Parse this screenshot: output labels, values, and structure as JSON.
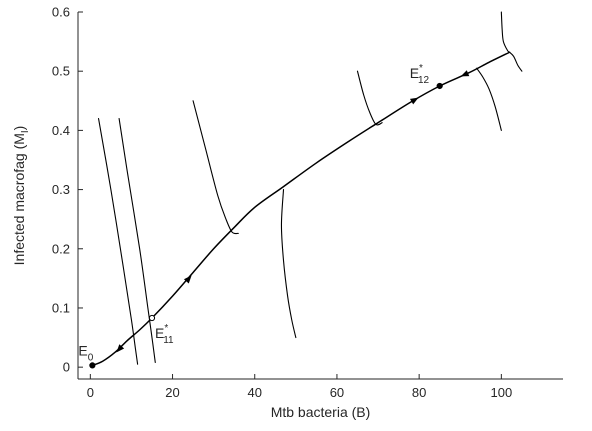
{
  "chart_data": {
    "type": "line",
    "title": "",
    "xlabel": "Mtb bacteria (B)",
    "ylabel_main": "Infected macrofag (M",
    "ylabel_sub": "I",
    "ylabel_close": ")",
    "xlim": [
      -3,
      115
    ],
    "ylim": [
      -0.02,
      0.6
    ],
    "xticks": [
      0,
      20,
      40,
      60,
      80,
      100
    ],
    "yticks": [
      0,
      0.1,
      0.2,
      0.3,
      0.4,
      0.5,
      0.6
    ],
    "xtick_labels": [
      "0",
      "20",
      "40",
      "60",
      "80",
      "100"
    ],
    "ytick_labels": [
      "0",
      "0.1",
      "0.2",
      "0.3",
      "0.4",
      "0.5",
      "0.6"
    ],
    "grid": false,
    "colors": {
      "line": "#000000",
      "axis": "#262626"
    },
    "series": [
      {
        "id": "heteroclinic",
        "x": [
          0.5,
          3,
          6,
          9,
          12,
          15,
          20,
          25,
          30,
          35,
          40,
          47,
          55,
          63,
          70,
          78,
          85,
          92,
          97,
          102
        ],
        "y": [
          0.003,
          0.01,
          0.025,
          0.045,
          0.063,
          0.083,
          0.12,
          0.16,
          0.2,
          0.236,
          0.27,
          0.305,
          0.345,
          0.382,
          0.413,
          0.448,
          0.475,
          0.497,
          0.515,
          0.532
        ]
      },
      {
        "id": "traj-a",
        "x": [
          2,
          5,
          8,
          10,
          11,
          11.5
        ],
        "y": [
          0.42,
          0.3,
          0.17,
          0.08,
          0.03,
          0.005
        ]
      },
      {
        "id": "traj-b",
        "x": [
          7,
          9,
          12,
          14,
          15,
          15.8
        ],
        "y": [
          0.42,
          0.33,
          0.2,
          0.1,
          0.05,
          0.008
        ]
      },
      {
        "id": "traj-c",
        "x": [
          25,
          28,
          31,
          33,
          34.5,
          36
        ],
        "y": [
          0.45,
          0.37,
          0.29,
          0.25,
          0.228,
          0.226
        ]
      },
      {
        "id": "traj-d",
        "x": [
          47,
          46.5,
          47,
          48,
          49,
          50
        ],
        "y": [
          0.3,
          0.24,
          0.18,
          0.12,
          0.08,
          0.05
        ]
      },
      {
        "id": "traj-e",
        "x": [
          65,
          66.5,
          68,
          69.5,
          71
        ],
        "y": [
          0.5,
          0.46,
          0.43,
          0.41,
          0.413
        ]
      },
      {
        "id": "traj-f",
        "x": [
          100,
          100.2,
          100.5,
          101.5,
          102
        ],
        "y": [
          0.6,
          0.57,
          0.55,
          0.535,
          0.532
        ]
      },
      {
        "id": "traj-g",
        "x": [
          102,
          103,
          104,
          105
        ],
        "y": [
          0.532,
          0.525,
          0.51,
          0.5
        ]
      },
      {
        "id": "traj-h",
        "x": [
          94,
          95.5,
          97,
          98.5,
          100
        ],
        "y": [
          0.505,
          0.49,
          0.47,
          0.44,
          0.4
        ]
      }
    ],
    "arrows": [
      {
        "id": "arrow-e0",
        "x": 7,
        "y": 0.03,
        "dx": -1,
        "dy": -0.008
      },
      {
        "id": "arrow-mid",
        "x": 24,
        "y": 0.15,
        "dx": 1,
        "dy": 0.008
      },
      {
        "id": "arrow-upper",
        "x": 79,
        "y": 0.452,
        "dx": 1,
        "dy": 0.004
      },
      {
        "id": "arrow-top",
        "x": 91,
        "y": 0.494,
        "dx": -1,
        "dy": -0.003
      }
    ],
    "points": [
      {
        "id": "E0",
        "label": "E",
        "sub": "0",
        "sup": "",
        "x": 0.5,
        "y": 0.003,
        "filled": true
      },
      {
        "id": "E11",
        "label": "E",
        "sub": "11",
        "sup": "*",
        "x": 15,
        "y": 0.083,
        "filled": false
      },
      {
        "id": "E12",
        "label": "E",
        "sub": "12",
        "sup": "*",
        "x": 85,
        "y": 0.475,
        "filled": true
      }
    ]
  }
}
